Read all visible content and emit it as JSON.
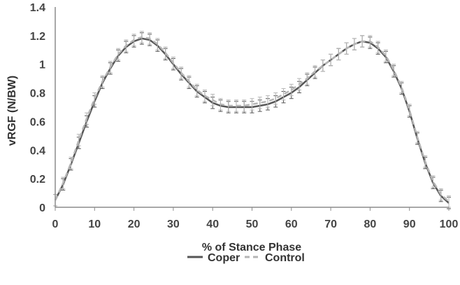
{
  "chart_data": {
    "type": "line",
    "xlabel": "% of Stance Phase",
    "ylabel": "vRGF (N/BW)",
    "xlim": [
      0,
      100
    ],
    "ylim": [
      0,
      1.4
    ],
    "x_ticks": [
      0,
      10,
      20,
      30,
      40,
      50,
      60,
      70,
      80,
      90,
      100
    ],
    "x_tick_labels": [
      "0",
      "10",
      "20",
      "30",
      "40",
      "50",
      "60",
      "70",
      "80",
      "90",
      "100"
    ],
    "y_ticks": [
      0,
      0.2,
      0.4,
      0.6,
      0.8,
      1.0,
      1.2,
      1.4
    ],
    "y_tick_labels": [
      "0",
      "0.2",
      "0.4",
      "0.6",
      "0.8",
      "1",
      "1.2",
      "1.4"
    ],
    "grid": false,
    "legend_position": "bottom-center",
    "x": [
      0,
      2,
      4,
      6,
      8,
      10,
      12,
      14,
      16,
      18,
      20,
      22,
      24,
      26,
      28,
      30,
      32,
      34,
      36,
      38,
      40,
      42,
      44,
      46,
      48,
      50,
      52,
      54,
      56,
      58,
      60,
      62,
      64,
      66,
      68,
      70,
      72,
      74,
      76,
      78,
      80,
      82,
      84,
      86,
      88,
      90,
      92,
      94,
      96,
      98,
      100
    ],
    "series": [
      {
        "name": "Coper",
        "color": "#555555",
        "line_style": "solid",
        "values": [
          0.05,
          0.16,
          0.3,
          0.45,
          0.6,
          0.74,
          0.87,
          0.97,
          1.06,
          1.12,
          1.16,
          1.18,
          1.17,
          1.13,
          1.07,
          1.0,
          0.93,
          0.87,
          0.81,
          0.77,
          0.73,
          0.71,
          0.7,
          0.7,
          0.7,
          0.7,
          0.71,
          0.72,
          0.74,
          0.77,
          0.8,
          0.84,
          0.89,
          0.94,
          0.99,
          1.03,
          1.07,
          1.11,
          1.14,
          1.16,
          1.15,
          1.11,
          1.05,
          0.95,
          0.83,
          0.67,
          0.48,
          0.31,
          0.17,
          0.08,
          0.03
        ],
        "error": 0.04
      },
      {
        "name": "Control",
        "color": "#b5b5b5",
        "line_style": "dashed",
        "values": [
          0.05,
          0.17,
          0.31,
          0.47,
          0.62,
          0.76,
          0.88,
          0.98,
          1.07,
          1.13,
          1.17,
          1.19,
          1.18,
          1.14,
          1.08,
          1.01,
          0.94,
          0.88,
          0.82,
          0.78,
          0.75,
          0.72,
          0.71,
          0.71,
          0.71,
          0.72,
          0.73,
          0.74,
          0.76,
          0.79,
          0.82,
          0.86,
          0.9,
          0.95,
          0.99,
          1.03,
          1.07,
          1.11,
          1.14,
          1.16,
          1.16,
          1.12,
          1.06,
          0.96,
          0.84,
          0.68,
          0.49,
          0.32,
          0.18,
          0.09,
          0.04
        ],
        "error": 0.04
      }
    ]
  }
}
